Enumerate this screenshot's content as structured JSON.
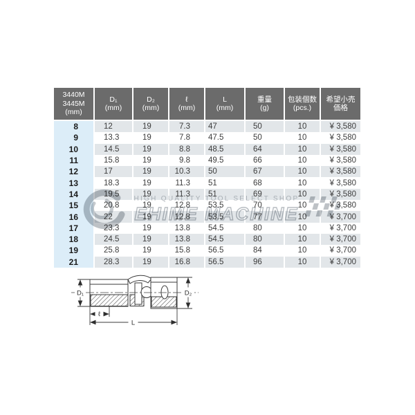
{
  "table": {
    "columns": [
      {
        "id": "size",
        "lines": [
          "3440M",
          "3445M",
          "(mm)"
        ]
      },
      {
        "id": "d1",
        "lines": [
          "D₁",
          "(mm)"
        ]
      },
      {
        "id": "d2",
        "lines": [
          "D₂",
          "(mm)"
        ]
      },
      {
        "id": "len",
        "lines": [
          "ℓ",
          "(mm)"
        ]
      },
      {
        "id": "L",
        "lines": [
          "L",
          "(mm)"
        ]
      },
      {
        "id": "weight",
        "lines": [
          "重量",
          "(g)"
        ]
      },
      {
        "id": "pcs",
        "lines": [
          "包装個数",
          "(pcs.)"
        ]
      },
      {
        "id": "price",
        "lines": [
          "希望小売",
          "価格"
        ]
      }
    ],
    "rows": [
      {
        "size": "8",
        "d1": "12",
        "d2": "19",
        "len": "7.3",
        "L": "47",
        "weight": "50",
        "pcs": "10",
        "price": "¥ 3,580"
      },
      {
        "size": "9",
        "d1": "13.3",
        "d2": "19",
        "len": "7.8",
        "L": "47.5",
        "weight": "50",
        "pcs": "10",
        "price": "¥ 3,580"
      },
      {
        "size": "10",
        "d1": "14.5",
        "d2": "19",
        "len": "8.8",
        "L": "48.5",
        "weight": "64",
        "pcs": "10",
        "price": "¥ 3,580"
      },
      {
        "size": "11",
        "d1": "15.8",
        "d2": "19",
        "len": "9.8",
        "L": "49.5",
        "weight": "66",
        "pcs": "10",
        "price": "¥ 3,580"
      },
      {
        "size": "12",
        "d1": "17",
        "d2": "19",
        "len": "10.3",
        "L": "50",
        "weight": "67",
        "pcs": "10",
        "price": "¥ 3,580"
      },
      {
        "size": "13",
        "d1": "18.3",
        "d2": "19",
        "len": "11.3",
        "L": "51",
        "weight": "68",
        "pcs": "10",
        "price": "¥ 3,580"
      },
      {
        "size": "14",
        "d1": "19.5",
        "d2": "19",
        "len": "11.3",
        "L": "51",
        "weight": "69",
        "pcs": "10",
        "price": "¥ 3,580"
      },
      {
        "size": "15",
        "d1": "20.8",
        "d2": "19",
        "len": "12.8",
        "L": "53.5",
        "weight": "70",
        "pcs": "10",
        "price": "¥ 3,580"
      },
      {
        "size": "16",
        "d1": "22",
        "d2": "19",
        "len": "12.8",
        "L": "53.5",
        "weight": "77",
        "pcs": "10",
        "price": "¥ 3,700"
      },
      {
        "size": "17",
        "d1": "23.3",
        "d2": "19",
        "len": "13.8",
        "L": "54.5",
        "weight": "80",
        "pcs": "10",
        "price": "¥ 3,700"
      },
      {
        "size": "18",
        "d1": "24.5",
        "d2": "19",
        "len": "13.8",
        "L": "54.5",
        "weight": "80",
        "pcs": "10",
        "price": "¥ 3,700"
      },
      {
        "size": "19",
        "d1": "25.8",
        "d2": "19",
        "len": "15.8",
        "L": "56.5",
        "weight": "84",
        "pcs": "10",
        "price": "¥ 3,700"
      },
      {
        "size": "21",
        "d1": "28.3",
        "d2": "19",
        "len": "16.8",
        "L": "56.5",
        "weight": "96",
        "pcs": "10",
        "price": "¥ 3,700"
      }
    ]
  },
  "watermark": {
    "tagline": "HIGH QUALITY TOOL SELECT SHOP",
    "brand": "EHIME MACHINE"
  },
  "diagram": {
    "labels": {
      "d1": "D₁",
      "d2": "D₂",
      "len": "ℓ",
      "L": "L"
    }
  },
  "colors": {
    "header_bg": "#6b6b6b",
    "header_text": "#ffffff",
    "row_stripe": "#e2e6e9",
    "row_white": "#ffffff",
    "size_col_bg": "#dcedf8",
    "body_text": "#3c3c3c",
    "diagram_line": "#3a3a3a",
    "watermark_gray": "#8e969d"
  }
}
